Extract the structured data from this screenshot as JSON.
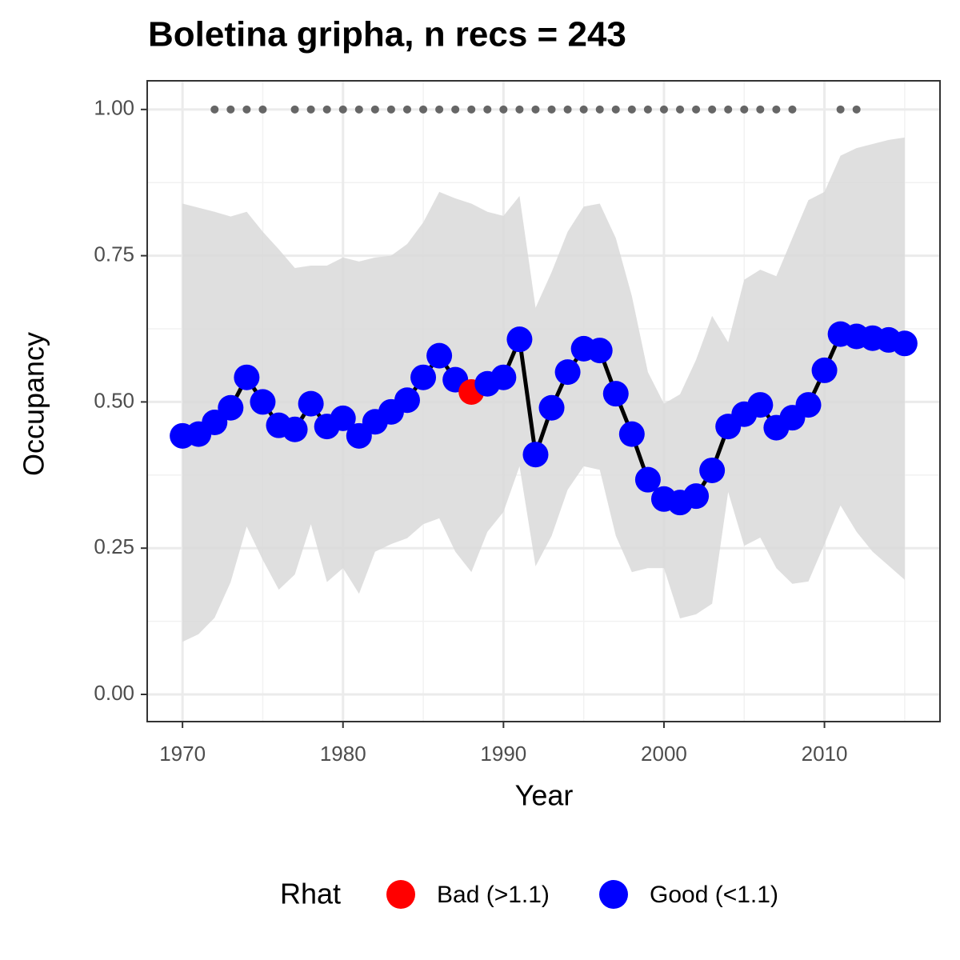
{
  "chart_data": {
    "type": "line",
    "title": "Boletina gripha, n recs = 243",
    "xlabel": "Year",
    "ylabel": "Occupancy",
    "x": [
      1970,
      1971,
      1972,
      1973,
      1974,
      1975,
      1976,
      1977,
      1978,
      1979,
      1980,
      1981,
      1982,
      1983,
      1984,
      1985,
      1986,
      1987,
      1988,
      1989,
      1990,
      1991,
      1992,
      1993,
      1994,
      1995,
      1996,
      1997,
      1998,
      1999,
      2000,
      2001,
      2002,
      2003,
      2004,
      2005,
      2006,
      2007,
      2008,
      2009,
      2010,
      2011,
      2012,
      2013,
      2014,
      2015
    ],
    "values": [
      0.442,
      0.445,
      0.465,
      0.49,
      0.542,
      0.5,
      0.46,
      0.453,
      0.497,
      0.458,
      0.472,
      0.442,
      0.466,
      0.483,
      0.503,
      0.542,
      0.579,
      0.538,
      0.517,
      0.531,
      0.542,
      0.607,
      0.41,
      0.49,
      0.551,
      0.591,
      0.588,
      0.514,
      0.445,
      0.367,
      0.334,
      0.328,
      0.339,
      0.383,
      0.458,
      0.479,
      0.495,
      0.456,
      0.473,
      0.495,
      0.554,
      0.616,
      0.612,
      0.609,
      0.606,
      0.6
    ],
    "rhat": [
      1,
      1,
      1,
      1,
      1,
      1,
      1,
      1,
      1,
      1,
      1,
      1,
      1,
      1,
      1,
      1,
      1,
      1,
      0,
      1,
      1,
      1,
      1,
      1,
      1,
      1,
      1,
      1,
      1,
      1,
      1,
      1,
      1,
      1,
      1,
      1,
      1,
      1,
      1,
      1,
      1,
      1,
      1,
      1,
      1,
      1
    ],
    "band": {
      "upper": [
        0.839,
        0.832,
        0.825,
        0.817,
        0.825,
        0.791,
        0.761,
        0.729,
        0.733,
        0.733,
        0.747,
        0.74,
        0.747,
        0.75,
        0.77,
        0.807,
        0.859,
        0.848,
        0.839,
        0.825,
        0.818,
        0.852,
        0.661,
        0.722,
        0.791,
        0.834,
        0.839,
        0.78,
        0.681,
        0.551,
        0.497,
        0.513,
        0.572,
        0.647,
        0.602,
        0.709,
        0.726,
        0.715,
        0.78,
        0.845,
        0.859,
        0.921,
        0.934,
        0.941,
        0.948,
        0.952
      ],
      "lower": [
        0.09,
        0.103,
        0.131,
        0.192,
        0.287,
        0.23,
        0.179,
        0.205,
        0.291,
        0.192,
        0.216,
        0.172,
        0.244,
        0.257,
        0.267,
        0.291,
        0.301,
        0.244,
        0.209,
        0.278,
        0.312,
        0.39,
        0.219,
        0.271,
        0.35,
        0.39,
        0.384,
        0.271,
        0.209,
        0.216,
        0.216,
        0.13,
        0.137,
        0.155,
        0.346,
        0.254,
        0.268,
        0.216,
        0.189,
        0.193,
        0.257,
        0.323,
        0.278,
        0.244,
        0.22,
        0.196
      ],
      "color": "#d9d9d9"
    },
    "line_color": "#000000",
    "record_points": {
      "x": [
        1972,
        1973,
        1974,
        1975,
        1977,
        1978,
        1979,
        1980,
        1981,
        1982,
        1983,
        1984,
        1985,
        1986,
        1987,
        1988,
        1989,
        1990,
        1991,
        1992,
        1993,
        1994,
        1995,
        1996,
        1997,
        1998,
        1999,
        2000,
        2001,
        2002,
        2003,
        2004,
        2005,
        2006,
        2007,
        2008,
        2011,
        2012
      ],
      "values": [
        1,
        1,
        1,
        1,
        1,
        1,
        1,
        1,
        1,
        1,
        1,
        1,
        1,
        1,
        1,
        1,
        1,
        1,
        1,
        1,
        1,
        1,
        1,
        1,
        1,
        1,
        1,
        1,
        1,
        1,
        1,
        1,
        1,
        1,
        1,
        1,
        1,
        1
      ],
      "color": "#666666"
    },
    "legend": {
      "title": "Rhat",
      "entries": [
        {
          "label": "Bad (>1.1)",
          "color": "#ff0000"
        },
        {
          "label": "Good (<1.1)",
          "color": "#0000ff"
        }
      ]
    },
    "xlim": [
      1967.8,
      2017.2
    ],
    "ylim": [
      -0.0465,
      1.049
    ],
    "xticks": [
      1970,
      1980,
      1990,
      2000,
      2010
    ],
    "xminor": [
      1975,
      1985,
      1995,
      2005,
      2015
    ],
    "yticks": [
      {
        "value": 0,
        "label": "0.00"
      },
      {
        "value": 0.25,
        "label": "0.25"
      },
      {
        "value": 0.5,
        "label": "0.50"
      },
      {
        "value": 0.75,
        "label": "0.75"
      },
      {
        "value": 1,
        "label": "1.00"
      }
    ],
    "yminor": [
      0.125,
      0.375,
      0.625,
      0.875
    ],
    "grid": true
  }
}
